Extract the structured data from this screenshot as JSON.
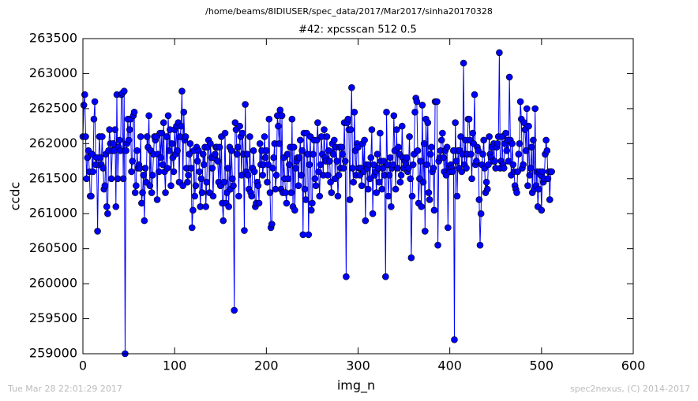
{
  "chart_data": {
    "type": "line",
    "suptitle": "/home/beams/8IDIUSER/spec_data/2017/Mar2017/sinha20170328",
    "title": "#42: xpcsscan 512 0.5",
    "xlabel": "img_n",
    "ylabel": "ccdc",
    "footer_left": "Tue Mar 28 22:01:29 2017",
    "footer_right": "spec2nexus, (C) 2014-2017",
    "xlim": [
      0,
      600
    ],
    "xticks": [
      0,
      100,
      200,
      300,
      400,
      500,
      600
    ],
    "ylim": [
      259000,
      263500
    ],
    "yticks": [
      259000,
      259500,
      260000,
      260500,
      261000,
      261500,
      262000,
      262500,
      263000,
      263500
    ],
    "grid": false,
    "x": [
      0,
      1,
      2,
      3,
      4,
      5,
      6,
      7,
      8,
      9,
      10,
      11,
      12,
      13,
      14,
      15,
      16,
      17,
      18,
      19,
      20,
      21,
      22,
      23,
      24,
      25,
      26,
      27,
      28,
      29,
      30,
      31,
      32,
      33,
      34,
      35,
      36,
      37,
      38,
      39,
      40,
      41,
      42,
      43,
      44,
      45,
      46,
      47,
      48,
      49,
      50,
      51,
      52,
      53,
      54,
      55,
      56,
      57,
      58,
      59,
      60,
      61,
      62,
      63,
      64,
      65,
      66,
      67,
      68,
      69,
      70,
      71,
      72,
      73,
      74,
      75,
      76,
      77,
      78,
      79,
      80,
      81,
      82,
      83,
      84,
      85,
      86,
      87,
      88,
      89,
      90,
      91,
      92,
      93,
      94,
      95,
      96,
      97,
      98,
      99,
      100,
      101,
      102,
      103,
      104,
      105,
      106,
      107,
      108,
      109,
      110,
      111,
      112,
      113,
      114,
      115,
      116,
      117,
      118,
      119,
      120,
      121,
      122,
      123,
      124,
      125,
      126,
      127,
      128,
      129,
      130,
      131,
      132,
      133,
      134,
      135,
      136,
      137,
      138,
      139,
      140,
      141,
      142,
      143,
      144,
      145,
      146,
      147,
      148,
      149,
      150,
      151,
      152,
      153,
      154,
      155,
      156,
      157,
      158,
      159,
      160,
      161,
      162,
      163,
      164,
      165,
      166,
      167,
      168,
      169,
      170,
      171,
      172,
      173,
      174,
      175,
      176,
      177,
      178,
      179,
      180,
      181,
      182,
      183,
      184,
      185,
      186,
      187,
      188,
      189,
      190,
      191,
      192,
      193,
      194,
      195,
      196,
      197,
      198,
      199,
      200,
      201,
      202,
      203,
      204,
      205,
      206,
      207,
      208,
      209,
      210,
      211,
      212,
      213,
      214,
      215,
      216,
      217,
      218,
      219,
      220,
      221,
      222,
      223,
      224,
      225,
      226,
      227,
      228,
      229,
      230,
      231,
      232,
      233,
      234,
      235,
      236,
      237,
      238,
      239,
      240,
      241,
      242,
      243,
      244,
      245,
      246,
      247,
      248,
      249,
      250,
      251,
      252,
      253,
      254,
      255,
      256,
      257,
      258,
      259,
      260,
      261,
      262,
      263,
      264,
      265,
      266,
      267,
      268,
      269,
      270,
      271,
      272,
      273,
      274,
      275,
      276,
      277,
      278,
      279,
      280,
      281,
      282,
      283,
      284,
      285,
      286,
      287,
      288,
      289,
      290,
      291,
      292,
      293,
      294,
      295,
      296,
      297,
      298,
      299,
      300,
      301,
      302,
      303,
      304,
      305,
      306,
      307,
      308,
      309,
      310,
      311,
      312,
      313,
      314,
      315,
      316,
      317,
      318,
      319,
      320,
      321,
      322,
      323,
      324,
      325,
      326,
      327,
      328,
      329,
      330,
      331,
      332,
      333,
      334,
      335,
      336,
      337,
      338,
      339,
      340,
      341,
      342,
      343,
      344,
      345,
      346,
      347,
      348,
      349,
      350,
      351,
      352,
      353,
      354,
      355,
      356,
      357,
      358,
      359,
      360,
      361,
      362,
      363,
      364,
      365,
      366,
      367,
      368,
      369,
      370,
      371,
      372,
      373,
      374,
      375,
      376,
      377,
      378,
      379,
      380,
      381,
      382,
      383,
      384,
      385,
      386,
      387,
      388,
      389,
      390,
      391,
      392,
      393,
      394,
      395,
      396,
      397,
      398,
      399,
      400,
      401,
      402,
      403,
      404,
      405,
      406,
      407,
      408,
      409,
      410,
      411,
      412,
      413,
      414,
      415,
      416,
      417,
      418,
      419,
      420,
      421,
      422,
      423,
      424,
      425,
      426,
      427,
      428,
      429,
      430,
      431,
      432,
      433,
      434,
      435,
      436,
      437,
      438,
      439,
      440,
      441,
      442,
      443,
      444,
      445,
      446,
      447,
      448,
      449,
      450,
      451,
      452,
      453,
      454,
      455,
      456,
      457,
      458,
      459,
      460,
      461,
      462,
      463,
      464,
      465,
      466,
      467,
      468,
      469,
      470,
      471,
      472,
      473,
      474,
      475,
      476,
      477,
      478,
      479,
      480,
      481,
      482,
      483,
      484,
      485,
      486,
      487,
      488,
      489,
      490,
      491,
      492,
      493,
      494,
      495,
      496,
      497,
      498,
      499,
      500,
      501,
      502,
      503,
      504,
      505,
      506,
      507,
      508,
      509,
      510,
      511
    ],
    "series": [
      {
        "color": "#0000ff",
        "values": [
          262100,
          262550,
          262700,
          262100,
          261500,
          261800,
          261900,
          261600,
          261250,
          261250,
          261850,
          261600,
          262350,
          262600,
          261700,
          261800,
          260750,
          261700,
          262100,
          261800,
          261700,
          262100,
          261650,
          261350,
          261400,
          261850,
          261100,
          261000,
          261900,
          262200,
          262000,
          261500,
          261900,
          262000,
          261900,
          262200,
          261100,
          262700,
          261500,
          261950,
          262050,
          261900,
          262700,
          262720,
          261500,
          262750,
          259000,
          261900,
          262000,
          262350,
          262050,
          262200,
          262350,
          261600,
          261750,
          262400,
          262450,
          261300,
          261400,
          261900,
          261650,
          261700,
          261650,
          262100,
          261150,
          261300,
          261550,
          260900,
          261650,
          261450,
          262100,
          261950,
          262400,
          261400,
          261900,
          261300,
          261550,
          261850,
          262100,
          262050,
          262100,
          261200,
          261850,
          261600,
          262150,
          261800,
          262150,
          261700,
          262300,
          261600,
          261300,
          262100,
          261650,
          262400,
          261900,
          262200,
          261400,
          262000,
          261800,
          261600,
          262200,
          261850,
          262250,
          261900,
          262300,
          261450,
          262100,
          262250,
          262750,
          261400,
          262450,
          262050,
          262100,
          261650,
          261450,
          261550,
          261850,
          262000,
          261650,
          260800,
          261050,
          261900,
          261250,
          261400,
          261950,
          261750,
          261900,
          261600,
          261100,
          261500,
          261300,
          261850,
          261700,
          261950,
          261100,
          261450,
          261950,
          262050,
          261300,
          262000,
          261800,
          261650,
          261250,
          261800,
          261850,
          261950,
          261950,
          261750,
          261450,
          261950,
          261400,
          262100,
          261150,
          260900,
          261450,
          262150,
          261150,
          261300,
          261650,
          261100,
          261950,
          261350,
          261900,
          261500,
          261400,
          259620,
          262300,
          262200,
          261850,
          261950,
          261250,
          262250,
          262100,
          261550,
          262150,
          261850,
          260760,
          262560,
          261600,
          261850,
          261550,
          261350,
          262100,
          261300,
          261250,
          261650,
          261900,
          261600,
          261100,
          261150,
          261450,
          261400,
          261150,
          262000,
          261700,
          261900,
          261550,
          261700,
          262100,
          261800,
          261900,
          261450,
          261700,
          262350,
          261300,
          260800,
          260850,
          261650,
          261800,
          262000,
          261350,
          261550,
          262400,
          262250,
          262000,
          262480,
          261350,
          262400,
          261300,
          261800,
          261500,
          261300,
          261150,
          261850,
          261500,
          261700,
          261950,
          261300,
          262350,
          261100,
          261950,
          261050,
          261650,
          261750,
          261800,
          261400,
          261800,
          262050,
          261550,
          261900,
          260700,
          262150,
          261350,
          261200,
          262150,
          261850,
          260700,
          261700,
          262100,
          261050,
          261150,
          261850,
          262050,
          261500,
          261400,
          262050,
          262300,
          261600,
          261250,
          261700,
          262100,
          261850,
          261550,
          262200,
          261800,
          261750,
          262100,
          261550,
          261900,
          261750,
          261450,
          261300,
          262000,
          261850,
          262050,
          261500,
          261950,
          261750,
          261250,
          261550,
          261950,
          261650,
          261950,
          261850,
          261650,
          262300,
          261750,
          260100,
          262300,
          262350,
          262200,
          261200,
          262200,
          262800,
          261650,
          261450,
          262450,
          261900,
          261550,
          262000,
          261950,
          261650,
          261550,
          261650,
          261400,
          262000,
          261600,
          262050,
          260900,
          261700,
          261650,
          261350,
          261700,
          261500,
          261800,
          262200,
          261000,
          261700,
          261550,
          261600,
          261300,
          261850,
          261650,
          261450,
          262150,
          261750,
          261350,
          261650,
          261750,
          261550,
          260100,
          262450,
          261700,
          261250,
          261550,
          261800,
          261100,
          261650,
          261700,
          262400,
          261900,
          261350,
          262200,
          261650,
          261950,
          261850,
          261450,
          261550,
          262250,
          261800,
          261650,
          261750,
          261700,
          261800,
          261600,
          261650,
          262100,
          261500,
          260370,
          261250,
          261700,
          261850,
          262450,
          262650,
          262600,
          261900,
          261150,
          261500,
          261750,
          261100,
          262550,
          261450,
          262000,
          260750,
          262350,
          261700,
          262300,
          261300,
          261200,
          261850,
          261950,
          261600,
          261650,
          261050,
          262600,
          262600,
          262600,
          260550,
          261750,
          261800,
          261900,
          262050,
          262150,
          261800,
          261600,
          261900,
          261550,
          261950,
          260800,
          261650,
          261600,
          261700,
          261650,
          261600,
          261900,
          259200,
          262300,
          261750,
          261250,
          261900,
          261650,
          261900,
          262100,
          261600,
          261850,
          263150,
          261700,
          262050,
          261650,
          261850,
          262350,
          262350,
          262050,
          261850,
          261500,
          262150,
          262000,
          262700,
          261700,
          261750,
          261950,
          261900,
          261200,
          260550,
          261000,
          261700,
          261850,
          262050,
          261650,
          261300,
          261450,
          261350,
          261700,
          262100,
          261850,
          261800,
          261950,
          261750,
          262000,
          261750,
          261650,
          261950,
          262000,
          262100,
          263300,
          261650,
          261750,
          262100,
          261700,
          261650,
          262000,
          262150,
          261900,
          262050,
          261750,
          262950,
          262050,
          261550,
          262000,
          261700,
          261600,
          261400,
          261350,
          261300,
          261600,
          261850,
          262000,
          262600,
          262350,
          261650,
          261700,
          262300,
          262200,
          261900,
          262500,
          261400,
          262250,
          261550,
          261650,
          261950,
          261300,
          262050,
          261350,
          262500,
          261400,
          261600,
          261100,
          261350,
          261600,
          261550,
          261050,
          261600,
          261450,
          261500,
          261850,
          262050,
          261900,
          261500,
          261600,
          261200,
          261600,
          261600
        ]
      }
    ]
  }
}
